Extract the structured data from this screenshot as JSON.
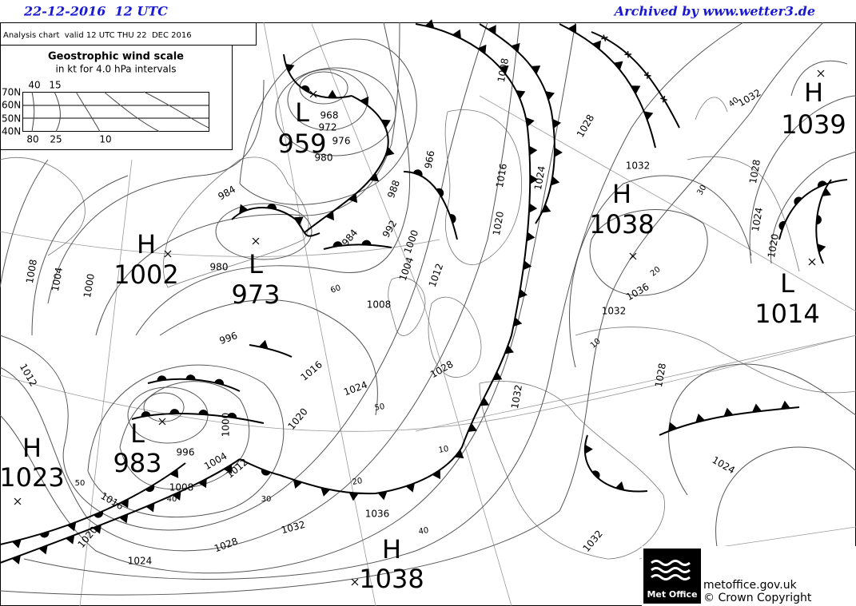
{
  "header": {
    "date": "22-12-2016  12 UTC",
    "archive": "Archived by www.wetter3.de"
  },
  "info": "Analysis chart  valid 12 UTC THU 22  DEC 2016",
  "wind_scale": {
    "title": "Geostrophic wind scale",
    "subtitle": "in kt for 4.0 hPa intervals",
    "latitudes": [
      "70N",
      "60N",
      "50N",
      "40N"
    ],
    "top_labels": [
      40,
      15
    ],
    "bottom_labels": [
      80,
      25,
      10
    ]
  },
  "pressure_centers": [
    {
      "label": "H",
      "pressure": 1039
    },
    {
      "label": "L",
      "pressure": 959
    },
    {
      "label": "L",
      "pressure": 973
    },
    {
      "label": "H",
      "pressure": 1002
    },
    {
      "label": "H",
      "pressure": 1038
    },
    {
      "label": "L",
      "pressure": 1014
    },
    {
      "label": "L",
      "pressure": 983
    },
    {
      "label": "H",
      "pressure": 1023
    },
    {
      "label": "H",
      "pressure": 1038
    }
  ],
  "isobar_labels": [
    968,
    972,
    976,
    980,
    984,
    988,
    992,
    984,
    966,
    980,
    1000,
    1004,
    1008,
    1012,
    1016,
    1020,
    1024,
    1028,
    1032,
    1000,
    996,
    1004,
    1008,
    1012,
    1016,
    1020,
    1024,
    1028,
    1032,
    1036,
    996,
    1000,
    1004,
    1008,
    1012,
    1016,
    1020,
    1024,
    1028,
    1032,
    1036,
    1032,
    1028,
    1024,
    1032,
    1032,
    1028,
    1024,
    1020,
    1008
  ],
  "wind_labels": [
    60,
    50,
    10,
    20,
    30,
    40,
    50,
    40,
    20,
    10,
    30,
    40
  ],
  "footer": {
    "logo": "Met Office",
    "site": "metoffice.gov.uk",
    "copyright": "© Crown Copyright"
  }
}
